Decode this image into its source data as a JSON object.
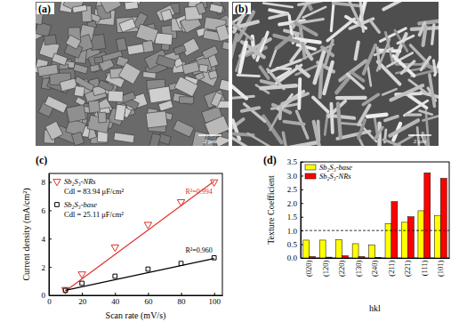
{
  "images": [
    {
      "label": "(a)",
      "scale_bar": "2 μm"
    },
    {
      "label": "(b)",
      "scale_bar": "2 μm"
    }
  ],
  "chart_data": [
    {
      "type": "scatter",
      "label": "(c)",
      "x_label": "Scan rate (mV/s)",
      "y_label": "Current density (mA/cm²)",
      "x": [
        10,
        20,
        40,
        60,
        80,
        100
      ],
      "fit_x": [
        10,
        100
      ],
      "series": [
        {
          "name": "Sb₂S₃-NRs",
          "color": "#e0302a",
          "marker": "triangle-down",
          "values": [
            0.4,
            1.5,
            3.4,
            5.0,
            6.6,
            8.0
          ],
          "fit_values": [
            0.3,
            8.05
          ],
          "capacitance_label": "Cdl = 83.94 μF/cm²",
          "fit_label": "R²=0.994"
        },
        {
          "name": "Sb₂S₃-base",
          "color": "#000000",
          "marker": "square",
          "values": [
            0.35,
            0.85,
            1.35,
            1.85,
            2.25,
            2.65
          ],
          "fit_values": [
            0.35,
            2.6
          ],
          "capacitance_label": "Cdl = 25.11 μF/cm²",
          "fit_label": "R²=0.960"
        }
      ],
      "xlim": [
        0,
        105
      ],
      "xticks": [
        0,
        20,
        40,
        60,
        80,
        100
      ],
      "ylim": [
        0,
        8.6
      ],
      "yticks": [
        0,
        2,
        4,
        6,
        8
      ],
      "legend": "top-left"
    },
    {
      "type": "bar",
      "label": "(d)",
      "x_label": "hkl",
      "y_label": "Texture Coefficient",
      "categories": [
        "(020)",
        "(120)",
        "(220)",
        "(130)",
        "(240)",
        "(211)",
        "(221)",
        "(111)",
        "(101)"
      ],
      "series": [
        {
          "name": "Sb₂S₃-base",
          "color": "#ffff00",
          "values": [
            0.65,
            0.65,
            0.67,
            0.52,
            0.48,
            1.25,
            1.3,
            1.72,
            1.55
          ]
        },
        {
          "name": "Sb₂S₃-NRs",
          "color": "#ff0000",
          "values": [
            0.05,
            0.03,
            0.08,
            0.05,
            0.02,
            2.05,
            1.5,
            3.1,
            2.9
          ]
        }
      ],
      "ylim": [
        0,
        3.5
      ],
      "yticks": [
        {
          "value": 0,
          "label": "0.0"
        },
        0.5,
        {
          "value": 1,
          "label": "1.0"
        },
        1.5,
        {
          "value": 2,
          "label": "2.0"
        },
        2.5,
        {
          "value": 3,
          "label": "3.0"
        },
        3.5
      ],
      "hline": 1,
      "legend": "top-left"
    }
  ]
}
